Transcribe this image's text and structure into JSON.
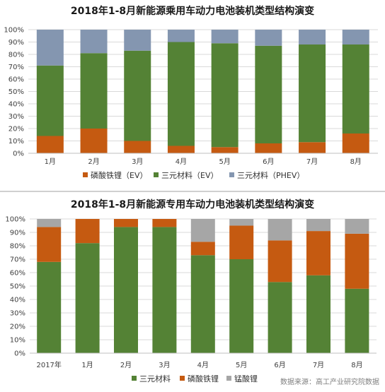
{
  "chart_data": [
    {
      "type": "bar",
      "stacked": true,
      "title": "2018年1-8月新能源乘用车动力电池装机类型结构演变",
      "categories": [
        "1月",
        "2月",
        "3月",
        "4月",
        "5月",
        "6月",
        "7月",
        "8月"
      ],
      "yticks": [
        "0%",
        "10%",
        "20%",
        "30%",
        "40%",
        "50%",
        "60%",
        "70%",
        "80%",
        "90%",
        "100%"
      ],
      "ylim": [
        0,
        100
      ],
      "grid": true,
      "legend_position": "bottom",
      "series": [
        {
          "name": "磷酸铁锂（EV）",
          "color": "#c55a11",
          "values": [
            14,
            20,
            10,
            6,
            5,
            8,
            9,
            16
          ]
        },
        {
          "name": "三元材料（EV）",
          "color": "#548235",
          "values": [
            57,
            61,
            73,
            84,
            84,
            79,
            79,
            72
          ]
        },
        {
          "name": "三元材料（PHEV）",
          "color": "#8496b0",
          "values": [
            29,
            19,
            17,
            10,
            11,
            13,
            12,
            12
          ]
        }
      ]
    },
    {
      "type": "bar",
      "stacked": true,
      "title": "2018年1-8月新能源专用车动力电池装机类型结构演变",
      "categories": [
        "2017年",
        "1月",
        "2月",
        "3月",
        "4月",
        "5月",
        "6月",
        "7月",
        "8月"
      ],
      "yticks": [
        "0%",
        "10%",
        "20%",
        "30%",
        "40%",
        "50%",
        "60%",
        "70%",
        "80%",
        "90%",
        "100%"
      ],
      "ylim": [
        0,
        100
      ],
      "grid": true,
      "legend_position": "bottom",
      "series": [
        {
          "name": "三元材料",
          "color": "#548235",
          "values": [
            68,
            82,
            94,
            94,
            73,
            70,
            53,
            58,
            48
          ]
        },
        {
          "name": "磷酸铁锂",
          "color": "#c55a11",
          "values": [
            26,
            18,
            6,
            6,
            10,
            25,
            31,
            33,
            41
          ]
        },
        {
          "name": "锰酸锂",
          "color": "#a6a6a6",
          "values": [
            6,
            0,
            0,
            0,
            17,
            5,
            16,
            9,
            11
          ]
        }
      ]
    }
  ],
  "source_note": "数据来源：高工产业研究院数据"
}
